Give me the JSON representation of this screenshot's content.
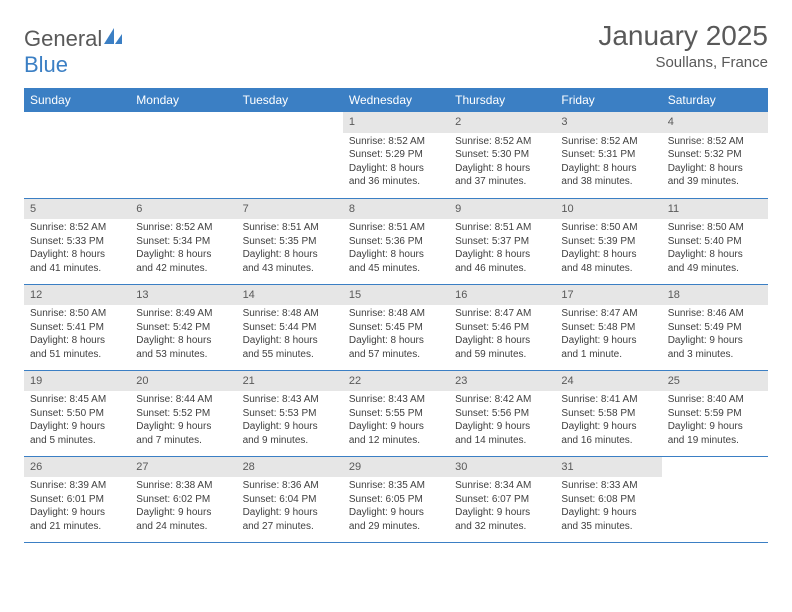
{
  "brand": {
    "part1": "General",
    "part2": "Blue"
  },
  "title": "January 2025",
  "location": "Soullans, France",
  "colors": {
    "header_bg": "#3b7fc4",
    "header_fg": "#ffffff",
    "daynum_bg": "#e6e6e6",
    "text": "#595959",
    "rule": "#3b7fc4",
    "logo_accent": "#3b7fc4"
  },
  "weekdays": [
    "Sunday",
    "Monday",
    "Tuesday",
    "Wednesday",
    "Thursday",
    "Friday",
    "Saturday"
  ],
  "weeks": [
    [
      {
        "n": "",
        "sr": "",
        "ss": "",
        "dl": ""
      },
      {
        "n": "",
        "sr": "",
        "ss": "",
        "dl": ""
      },
      {
        "n": "",
        "sr": "",
        "ss": "",
        "dl": ""
      },
      {
        "n": "1",
        "sr": "Sunrise: 8:52 AM",
        "ss": "Sunset: 5:29 PM",
        "dl": "Daylight: 8 hours and 36 minutes."
      },
      {
        "n": "2",
        "sr": "Sunrise: 8:52 AM",
        "ss": "Sunset: 5:30 PM",
        "dl": "Daylight: 8 hours and 37 minutes."
      },
      {
        "n": "3",
        "sr": "Sunrise: 8:52 AM",
        "ss": "Sunset: 5:31 PM",
        "dl": "Daylight: 8 hours and 38 minutes."
      },
      {
        "n": "4",
        "sr": "Sunrise: 8:52 AM",
        "ss": "Sunset: 5:32 PM",
        "dl": "Daylight: 8 hours and 39 minutes."
      }
    ],
    [
      {
        "n": "5",
        "sr": "Sunrise: 8:52 AM",
        "ss": "Sunset: 5:33 PM",
        "dl": "Daylight: 8 hours and 41 minutes."
      },
      {
        "n": "6",
        "sr": "Sunrise: 8:52 AM",
        "ss": "Sunset: 5:34 PM",
        "dl": "Daylight: 8 hours and 42 minutes."
      },
      {
        "n": "7",
        "sr": "Sunrise: 8:51 AM",
        "ss": "Sunset: 5:35 PM",
        "dl": "Daylight: 8 hours and 43 minutes."
      },
      {
        "n": "8",
        "sr": "Sunrise: 8:51 AM",
        "ss": "Sunset: 5:36 PM",
        "dl": "Daylight: 8 hours and 45 minutes."
      },
      {
        "n": "9",
        "sr": "Sunrise: 8:51 AM",
        "ss": "Sunset: 5:37 PM",
        "dl": "Daylight: 8 hours and 46 minutes."
      },
      {
        "n": "10",
        "sr": "Sunrise: 8:50 AM",
        "ss": "Sunset: 5:39 PM",
        "dl": "Daylight: 8 hours and 48 minutes."
      },
      {
        "n": "11",
        "sr": "Sunrise: 8:50 AM",
        "ss": "Sunset: 5:40 PM",
        "dl": "Daylight: 8 hours and 49 minutes."
      }
    ],
    [
      {
        "n": "12",
        "sr": "Sunrise: 8:50 AM",
        "ss": "Sunset: 5:41 PM",
        "dl": "Daylight: 8 hours and 51 minutes."
      },
      {
        "n": "13",
        "sr": "Sunrise: 8:49 AM",
        "ss": "Sunset: 5:42 PM",
        "dl": "Daylight: 8 hours and 53 minutes."
      },
      {
        "n": "14",
        "sr": "Sunrise: 8:48 AM",
        "ss": "Sunset: 5:44 PM",
        "dl": "Daylight: 8 hours and 55 minutes."
      },
      {
        "n": "15",
        "sr": "Sunrise: 8:48 AM",
        "ss": "Sunset: 5:45 PM",
        "dl": "Daylight: 8 hours and 57 minutes."
      },
      {
        "n": "16",
        "sr": "Sunrise: 8:47 AM",
        "ss": "Sunset: 5:46 PM",
        "dl": "Daylight: 8 hours and 59 minutes."
      },
      {
        "n": "17",
        "sr": "Sunrise: 8:47 AM",
        "ss": "Sunset: 5:48 PM",
        "dl": "Daylight: 9 hours and 1 minute."
      },
      {
        "n": "18",
        "sr": "Sunrise: 8:46 AM",
        "ss": "Sunset: 5:49 PM",
        "dl": "Daylight: 9 hours and 3 minutes."
      }
    ],
    [
      {
        "n": "19",
        "sr": "Sunrise: 8:45 AM",
        "ss": "Sunset: 5:50 PM",
        "dl": "Daylight: 9 hours and 5 minutes."
      },
      {
        "n": "20",
        "sr": "Sunrise: 8:44 AM",
        "ss": "Sunset: 5:52 PM",
        "dl": "Daylight: 9 hours and 7 minutes."
      },
      {
        "n": "21",
        "sr": "Sunrise: 8:43 AM",
        "ss": "Sunset: 5:53 PM",
        "dl": "Daylight: 9 hours and 9 minutes."
      },
      {
        "n": "22",
        "sr": "Sunrise: 8:43 AM",
        "ss": "Sunset: 5:55 PM",
        "dl": "Daylight: 9 hours and 12 minutes."
      },
      {
        "n": "23",
        "sr": "Sunrise: 8:42 AM",
        "ss": "Sunset: 5:56 PM",
        "dl": "Daylight: 9 hours and 14 minutes."
      },
      {
        "n": "24",
        "sr": "Sunrise: 8:41 AM",
        "ss": "Sunset: 5:58 PM",
        "dl": "Daylight: 9 hours and 16 minutes."
      },
      {
        "n": "25",
        "sr": "Sunrise: 8:40 AM",
        "ss": "Sunset: 5:59 PM",
        "dl": "Daylight: 9 hours and 19 minutes."
      }
    ],
    [
      {
        "n": "26",
        "sr": "Sunrise: 8:39 AM",
        "ss": "Sunset: 6:01 PM",
        "dl": "Daylight: 9 hours and 21 minutes."
      },
      {
        "n": "27",
        "sr": "Sunrise: 8:38 AM",
        "ss": "Sunset: 6:02 PM",
        "dl": "Daylight: 9 hours and 24 minutes."
      },
      {
        "n": "28",
        "sr": "Sunrise: 8:36 AM",
        "ss": "Sunset: 6:04 PM",
        "dl": "Daylight: 9 hours and 27 minutes."
      },
      {
        "n": "29",
        "sr": "Sunrise: 8:35 AM",
        "ss": "Sunset: 6:05 PM",
        "dl": "Daylight: 9 hours and 29 minutes."
      },
      {
        "n": "30",
        "sr": "Sunrise: 8:34 AM",
        "ss": "Sunset: 6:07 PM",
        "dl": "Daylight: 9 hours and 32 minutes."
      },
      {
        "n": "31",
        "sr": "Sunrise: 8:33 AM",
        "ss": "Sunset: 6:08 PM",
        "dl": "Daylight: 9 hours and 35 minutes."
      },
      {
        "n": "",
        "sr": "",
        "ss": "",
        "dl": ""
      }
    ]
  ]
}
